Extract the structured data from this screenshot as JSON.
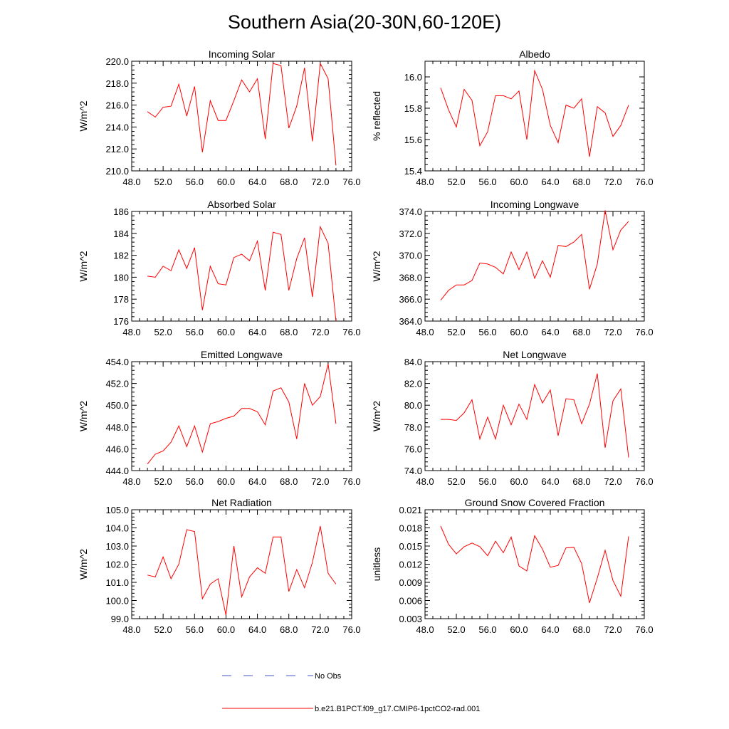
{
  "figure": {
    "title": "Southern Asia(20-30N,60-120E)"
  },
  "legend": {
    "entries": [
      {
        "label": "No Obs",
        "color": "#4a55c8",
        "dash": true
      },
      {
        "label": "b.e21.B1PCT.f09_g17.CMIP6-1pctCO2-rad.001",
        "color": "#ff0000",
        "dash": false
      }
    ]
  },
  "chart_data": [
    {
      "type": "line",
      "title": "Incoming Solar",
      "xlabel": "",
      "ylabel": "W/m^2",
      "xlim": [
        48,
        76
      ],
      "ylim": [
        210,
        220
      ],
      "xticks": [
        48,
        52,
        56,
        60,
        64,
        68,
        72,
        76
      ],
      "xticklabels": [
        "48.0",
        "52.0",
        "56.0",
        "60.0",
        "64.0",
        "68.0",
        "72.0",
        "76.0"
      ],
      "yticks": [
        210,
        212,
        214,
        216,
        218,
        220
      ],
      "yticklabels": [
        "210.0",
        "212.0",
        "214.0",
        "216.0",
        "218.0",
        "220.0"
      ],
      "series": [
        {
          "color": "#ff0000",
          "x": [
            50,
            51,
            52,
            53,
            54,
            55,
            56,
            57,
            58,
            59,
            60,
            61,
            62,
            63,
            64,
            65,
            66,
            67,
            68,
            69,
            70,
            71,
            72,
            73,
            74
          ],
          "y": [
            215.4,
            214.9,
            215.8,
            215.9,
            217.9,
            215.0,
            217.7,
            211.7,
            216.4,
            214.6,
            214.6,
            216.4,
            218.3,
            217.2,
            218.4,
            212.9,
            219.8,
            219.6,
            213.9,
            215.9,
            219.4,
            212.7,
            219.8,
            218.4,
            210.5
          ]
        }
      ]
    },
    {
      "type": "line",
      "title": "Albedo",
      "xlabel": "",
      "ylabel": "% reflected",
      "xlim": [
        48,
        76
      ],
      "ylim": [
        15.4,
        16.1
      ],
      "xticks": [
        48,
        52,
        56,
        60,
        64,
        68,
        72,
        76
      ],
      "xticklabels": [
        "48.0",
        "52.0",
        "56.0",
        "60.0",
        "64.0",
        "68.0",
        "72.0",
        "76.0"
      ],
      "yticks": [
        15.4,
        15.6,
        15.8,
        16.0
      ],
      "yticklabels": [
        "15.4",
        "15.6",
        "15.8",
        "16.0"
      ],
      "series": [
        {
          "color": "#ff0000",
          "x": [
            50,
            51,
            52,
            53,
            54,
            55,
            56,
            57,
            58,
            59,
            60,
            61,
            62,
            63,
            64,
            65,
            66,
            67,
            68,
            69,
            70,
            71,
            72,
            73,
            74
          ],
          "y": [
            15.93,
            15.79,
            15.68,
            15.92,
            15.85,
            15.56,
            15.65,
            15.88,
            15.88,
            15.86,
            15.91,
            15.6,
            16.04,
            15.92,
            15.69,
            15.58,
            15.82,
            15.8,
            15.86,
            15.49,
            15.81,
            15.77,
            15.62,
            15.69,
            15.82
          ]
        }
      ]
    },
    {
      "type": "line",
      "title": "Absorbed Solar",
      "xlabel": "",
      "ylabel": "W/m^2",
      "xlim": [
        48,
        76
      ],
      "ylim": [
        176,
        186
      ],
      "xticks": [
        48,
        52,
        56,
        60,
        64,
        68,
        72,
        76
      ],
      "xticklabels": [
        "48.0",
        "52.0",
        "56.0",
        "60.0",
        "64.0",
        "68.0",
        "72.0",
        "76.0"
      ],
      "yticks": [
        176,
        178,
        180,
        182,
        184,
        186
      ],
      "yticklabels": [
        "176",
        "178",
        "180",
        "182",
        "184",
        "186"
      ],
      "series": [
        {
          "color": "#ff0000",
          "x": [
            50,
            51,
            52,
            53,
            54,
            55,
            56,
            57,
            58,
            59,
            60,
            61,
            62,
            63,
            64,
            65,
            66,
            67,
            68,
            69,
            70,
            71,
            72,
            73,
            74
          ],
          "y": [
            180.1,
            180.0,
            181.0,
            180.6,
            182.5,
            180.8,
            182.7,
            177.0,
            181.0,
            179.4,
            179.3,
            181.8,
            182.1,
            181.5,
            183.3,
            178.8,
            184.1,
            183.9,
            178.8,
            181.7,
            183.6,
            178.2,
            184.6,
            183.1,
            176.0
          ]
        }
      ]
    },
    {
      "type": "line",
      "title": "Incoming Longwave",
      "xlabel": "",
      "ylabel": "W/m^2",
      "xlim": [
        48,
        76
      ],
      "ylim": [
        364,
        374
      ],
      "xticks": [
        48,
        52,
        56,
        60,
        64,
        68,
        72,
        76
      ],
      "xticklabels": [
        "48.0",
        "52.0",
        "56.0",
        "60.0",
        "64.0",
        "68.0",
        "72.0",
        "76.0"
      ],
      "yticks": [
        364,
        366,
        368,
        370,
        372,
        374
      ],
      "yticklabels": [
        "364.0",
        "366.0",
        "368.0",
        "370.0",
        "372.0",
        "374.0"
      ],
      "series": [
        {
          "color": "#ff0000",
          "x": [
            50,
            51,
            52,
            53,
            54,
            55,
            56,
            57,
            58,
            59,
            60,
            61,
            62,
            63,
            64,
            65,
            66,
            67,
            68,
            69,
            70,
            71,
            72,
            73,
            74
          ],
          "y": [
            365.9,
            366.8,
            367.3,
            367.3,
            367.7,
            369.3,
            369.2,
            368.9,
            368.3,
            370.3,
            368.7,
            370.3,
            367.9,
            369.5,
            368.0,
            370.9,
            370.8,
            371.2,
            371.9,
            366.9,
            369.2,
            374.1,
            370.5,
            372.3,
            373.1
          ]
        }
      ]
    },
    {
      "type": "line",
      "title": "Emitted Longwave",
      "xlabel": "",
      "ylabel": "W/m^2",
      "xlim": [
        48,
        76
      ],
      "ylim": [
        444,
        454
      ],
      "xticks": [
        48,
        52,
        56,
        60,
        64,
        68,
        72,
        76
      ],
      "xticklabels": [
        "48.0",
        "52.0",
        "56.0",
        "60.0",
        "64.0",
        "68.0",
        "72.0",
        "76.0"
      ],
      "yticks": [
        444,
        446,
        448,
        450,
        452,
        454
      ],
      "yticklabels": [
        "444.0",
        "446.0",
        "448.0",
        "450.0",
        "452.0",
        "454.0"
      ],
      "series": [
        {
          "color": "#ff0000",
          "x": [
            50,
            51,
            52,
            53,
            54,
            55,
            56,
            57,
            58,
            59,
            60,
            61,
            62,
            63,
            64,
            65,
            66,
            67,
            68,
            69,
            70,
            71,
            72,
            73,
            74
          ],
          "y": [
            444.6,
            445.5,
            445.8,
            446.6,
            448.1,
            446.2,
            448.1,
            445.7,
            448.3,
            448.5,
            448.8,
            449.0,
            449.7,
            449.7,
            449.4,
            448.2,
            451.3,
            451.6,
            450.3,
            446.9,
            452.0,
            450.0,
            450.8,
            453.8,
            448.3
          ]
        }
      ]
    },
    {
      "type": "line",
      "title": "Net Longwave",
      "xlabel": "",
      "ylabel": "W/m^2",
      "xlim": [
        48,
        76
      ],
      "ylim": [
        74,
        84
      ],
      "xticks": [
        48,
        52,
        56,
        60,
        64,
        68,
        72,
        76
      ],
      "xticklabels": [
        "48.0",
        "52.0",
        "56.0",
        "60.0",
        "64.0",
        "68.0",
        "72.0",
        "76.0"
      ],
      "yticks": [
        74,
        76,
        78,
        80,
        82,
        84
      ],
      "yticklabels": [
        "74.0",
        "76.0",
        "78.0",
        "80.0",
        "82.0",
        "84.0"
      ],
      "series": [
        {
          "color": "#ff0000",
          "x": [
            50,
            51,
            52,
            53,
            54,
            55,
            56,
            57,
            58,
            59,
            60,
            61,
            62,
            63,
            64,
            65,
            66,
            67,
            68,
            69,
            70,
            71,
            72,
            73,
            74
          ],
          "y": [
            78.7,
            78.7,
            78.6,
            79.3,
            80.5,
            76.9,
            78.9,
            76.9,
            80.0,
            78.2,
            80.1,
            78.7,
            81.9,
            80.2,
            81.4,
            77.2,
            80.6,
            80.5,
            78.3,
            80.1,
            82.9,
            76.1,
            80.4,
            81.5,
            75.2
          ]
        }
      ]
    },
    {
      "type": "line",
      "title": "Net Radiation",
      "xlabel": "",
      "ylabel": "W/m^2",
      "xlim": [
        48,
        76
      ],
      "ylim": [
        99,
        105
      ],
      "xticks": [
        48,
        52,
        56,
        60,
        64,
        68,
        72,
        76
      ],
      "xticklabels": [
        "48.0",
        "52.0",
        "56.0",
        "60.0",
        "64.0",
        "68.0",
        "72.0",
        "76.0"
      ],
      "yticks": [
        99,
        100,
        101,
        102,
        103,
        104,
        105
      ],
      "yticklabels": [
        "99.0",
        "100.0",
        "101.0",
        "102.0",
        "103.0",
        "104.0",
        "105.0"
      ],
      "series": [
        {
          "color": "#ff0000",
          "x": [
            50,
            51,
            52,
            53,
            54,
            55,
            56,
            57,
            58,
            59,
            60,
            61,
            62,
            63,
            64,
            65,
            66,
            67,
            68,
            69,
            70,
            71,
            72,
            73,
            74
          ],
          "y": [
            101.4,
            101.3,
            102.4,
            101.2,
            102.0,
            103.9,
            103.8,
            100.1,
            100.9,
            101.2,
            99.2,
            103.0,
            100.2,
            101.3,
            101.8,
            101.5,
            103.5,
            103.5,
            100.5,
            101.7,
            100.7,
            102.1,
            104.1,
            101.5,
            100.9
          ]
        }
      ]
    },
    {
      "type": "line",
      "title": "Ground Snow Covered Fraction",
      "xlabel": "",
      "ylabel": "unitless",
      "xlim": [
        48,
        76
      ],
      "ylim": [
        0.003,
        0.021
      ],
      "xticks": [
        48,
        52,
        56,
        60,
        64,
        68,
        72,
        76
      ],
      "xticklabels": [
        "48.0",
        "52.0",
        "56.0",
        "60.0",
        "64.0",
        "68.0",
        "72.0",
        "76.0"
      ],
      "yticks": [
        0.003,
        0.006,
        0.009,
        0.012,
        0.015,
        0.018,
        0.021
      ],
      "yticklabels": [
        "0.003",
        "0.006",
        "0.009",
        "0.012",
        "0.015",
        "0.018",
        "0.021"
      ],
      "series": [
        {
          "color": "#ff0000",
          "x": [
            50,
            51,
            52,
            53,
            54,
            55,
            56,
            57,
            58,
            59,
            60,
            61,
            62,
            63,
            64,
            65,
            66,
            67,
            68,
            69,
            70,
            71,
            72,
            73,
            74
          ],
          "y": [
            0.0183,
            0.0153,
            0.0137,
            0.0149,
            0.0155,
            0.0149,
            0.0134,
            0.0158,
            0.0139,
            0.0165,
            0.0117,
            0.0109,
            0.0167,
            0.0145,
            0.0115,
            0.0118,
            0.0147,
            0.0148,
            0.0121,
            0.0056,
            0.0097,
            0.0143,
            0.0093,
            0.0067,
            0.0166
          ]
        }
      ]
    }
  ]
}
